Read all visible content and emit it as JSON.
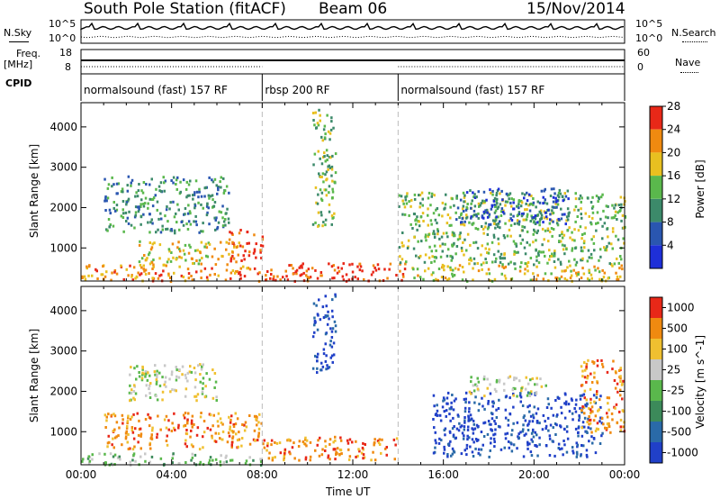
{
  "header": {
    "station_title": "South Pole Station (fitACF)",
    "beam_label": "Beam 06",
    "date_label": "15/Nov/2014"
  },
  "status_panels": {
    "nsky_label": "N.Sky",
    "nsearch_label": "N.Search",
    "nsky_ticks": [
      "10^5",
      "10^0"
    ],
    "nsearch_ticks": [
      "10^5",
      "10^0"
    ],
    "freq_label_line1": "Freq.",
    "freq_label_line2": "[MHz]",
    "freq_ticks": [
      "18",
      "8"
    ],
    "nave_label": "Nave",
    "nave_ticks": [
      "60",
      "0"
    ],
    "cpid_label": "CPID",
    "cpid_segments": [
      {
        "label": "normalsound (fast) 157 RF",
        "start_hour": 0,
        "end_hour": 8
      },
      {
        "label": "rbsp 200 RF",
        "start_hour": 8,
        "end_hour": 14
      },
      {
        "label": "normalsound (fast) 157 RF",
        "start_hour": 14,
        "end_hour": 24
      }
    ]
  },
  "chart_data": [
    {
      "type": "heatmap",
      "name": "power",
      "ylabel": "Slant Range [km]",
      "xlim_hours": [
        0,
        24
      ],
      "ylim": [
        180,
        4600
      ],
      "y_ticks": [
        1000,
        2000,
        3000,
        4000
      ],
      "y_tick_labels": [
        "1000",
        "2000",
        "3000",
        "4000"
      ],
      "colorbar_label": "Power [dB]",
      "colorbar_ticks": [
        "4",
        "8",
        "12",
        "16",
        "20",
        "24",
        "28"
      ],
      "colorbar_colors": [
        "#1e2fd8",
        "#2a56b0",
        "#3c8a6a",
        "#5ab84c",
        "#e8c020",
        "#f08a10",
        "#e82818"
      ],
      "echo_regions": [
        {
          "t0": 0.0,
          "t1": 8.0,
          "r0": 200,
          "r1": 600,
          "level": 5
        },
        {
          "t0": 8.0,
          "t1": 14.5,
          "r0": 200,
          "r1": 650,
          "level": 6
        },
        {
          "t0": 14.5,
          "t1": 24.0,
          "r0": 200,
          "r1": 600,
          "level": 4
        },
        {
          "t0": 2.5,
          "t1": 7.0,
          "r0": 600,
          "r1": 1200,
          "level": 4
        },
        {
          "t0": 6.5,
          "t1": 8.0,
          "r0": 700,
          "r1": 1500,
          "level": 6
        },
        {
          "t0": 1.0,
          "t1": 6.5,
          "r0": 1400,
          "r1": 2800,
          "level": 2
        },
        {
          "t0": 10.2,
          "t1": 11.2,
          "r0": 1500,
          "r1": 4500,
          "level": 3
        },
        {
          "t0": 14.0,
          "t1": 24.0,
          "r0": 600,
          "r1": 2400,
          "level": 3
        },
        {
          "t0": 16.5,
          "t1": 21.5,
          "r0": 1600,
          "r1": 2500,
          "level": 1
        }
      ]
    },
    {
      "type": "heatmap",
      "name": "velocity",
      "xlabel": "Time UT",
      "ylabel": "Slant Range [km]",
      "xlim_hours": [
        0,
        24
      ],
      "x_ticks": [
        0,
        4,
        8,
        12,
        16,
        20,
        24
      ],
      "x_tick_labels": [
        "00:00",
        "04:00",
        "08:00",
        "12:00",
        "16:00",
        "20:00",
        "00:00"
      ],
      "ylim": [
        180,
        4600
      ],
      "y_ticks": [
        1000,
        2000,
        3000,
        4000
      ],
      "y_tick_labels": [
        "1000",
        "2000",
        "3000",
        "4000"
      ],
      "colorbar_label": "Velocity [m s^-1]",
      "colorbar_ticks": [
        "1000",
        "500",
        "100",
        "25",
        "-25",
        "-100",
        "-500",
        "-1000"
      ],
      "colorbar_colors": [
        "#2040c8",
        "#2a6aa8",
        "#3c8a5a",
        "#5ab84c",
        "#c8c8c8",
        "#f0c030",
        "#f08a10",
        "#e82818"
      ],
      "echo_regions": [
        {
          "t0": 0.0,
          "t1": 8.0,
          "r0": 200,
          "r1": 500,
          "level": 3
        },
        {
          "t0": 1.0,
          "t1": 8.0,
          "r0": 600,
          "r1": 1500,
          "level": 6
        },
        {
          "t0": 8.0,
          "t1": 14.0,
          "r0": 300,
          "r1": 900,
          "level": 6
        },
        {
          "t0": 2.0,
          "t1": 6.0,
          "r0": 1800,
          "r1": 2700,
          "level": 4
        },
        {
          "t0": 10.2,
          "t1": 11.2,
          "r0": 2500,
          "r1": 4500,
          "level": 0
        },
        {
          "t0": 15.5,
          "t1": 23.0,
          "r0": 400,
          "r1": 2000,
          "level": 0
        },
        {
          "t0": 17.0,
          "t1": 20.5,
          "r0": 1900,
          "r1": 2400,
          "level": 4
        },
        {
          "t0": 22.0,
          "t1": 24.0,
          "r0": 1000,
          "r1": 2800,
          "level": 6
        }
      ]
    }
  ]
}
